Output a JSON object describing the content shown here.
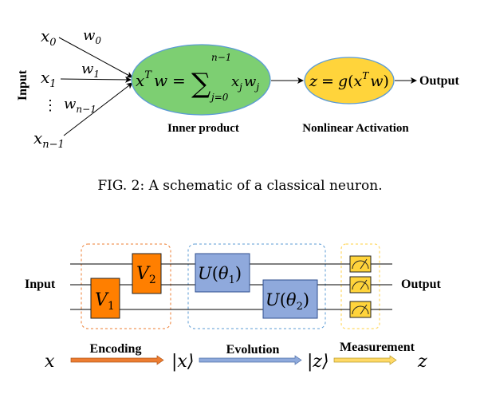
{
  "neuron": {
    "input_label": "Input",
    "inputs": [
      {
        "x_base": "x",
        "x_sub": "0",
        "w_base": "w",
        "w_sub": "0"
      },
      {
        "x_base": "x",
        "x_sub": "1",
        "w_base": "w",
        "w_sub": "1"
      },
      {
        "x_base": "x",
        "x_sub": "n−1",
        "w_base": "w",
        "w_sub": "n−1"
      }
    ],
    "ellipsis": "⋮",
    "inner": {
      "lhs_base": "x",
      "lhs_sup": "T",
      "lhs_w": "w",
      "equals": "=",
      "sum": "∑",
      "sum_upper": "n−1",
      "sum_lower": "j=0",
      "term_x": "x",
      "term_x_sub": "j",
      "term_w": "w",
      "term_w_sub": "j"
    },
    "activation": {
      "lhs": "z",
      "equals": "=",
      "g": "g",
      "open": "(",
      "x": "x",
      "sup": "T",
      "w": "w",
      "close": ")"
    },
    "output_label": "Output",
    "inner_caption": "Inner product",
    "activation_caption": "Nonlinear Activation",
    "colors": {
      "inner_fill": "#7dcf72",
      "inner_stroke": "#5b9bd5",
      "act_fill": "#ffd43b",
      "act_stroke": "#5b9bd5"
    }
  },
  "caption": "FIG. 2: A schematic of a classical neuron.",
  "quantum": {
    "input_label": "Input",
    "output_label": "Output",
    "gates": {
      "v1": {
        "base": "V",
        "sub": "1"
      },
      "v2": {
        "base": "V",
        "sub": "2"
      },
      "u1": {
        "u": "U",
        "open": "(",
        "theta": "θ",
        "sub": "1",
        "close": ")"
      },
      "u2": {
        "u": "U",
        "open": "(",
        "theta": "θ",
        "sub": "2",
        "close": ")"
      }
    },
    "stages": {
      "encoding": "Encoding",
      "evolution": "Evolution",
      "measurement": "Measurement"
    },
    "states": {
      "x": "x",
      "ket_x": "|x⟩",
      "ket_z": "|z⟩",
      "z": "z"
    },
    "colors": {
      "encoding": "#ed7d31",
      "evolution": "#8faadc",
      "measurement": "#ffd966",
      "orange_gate": "#ff7f00",
      "blue_gate": "#8fa9dc",
      "yellow_gate": "#ffd43b"
    }
  }
}
